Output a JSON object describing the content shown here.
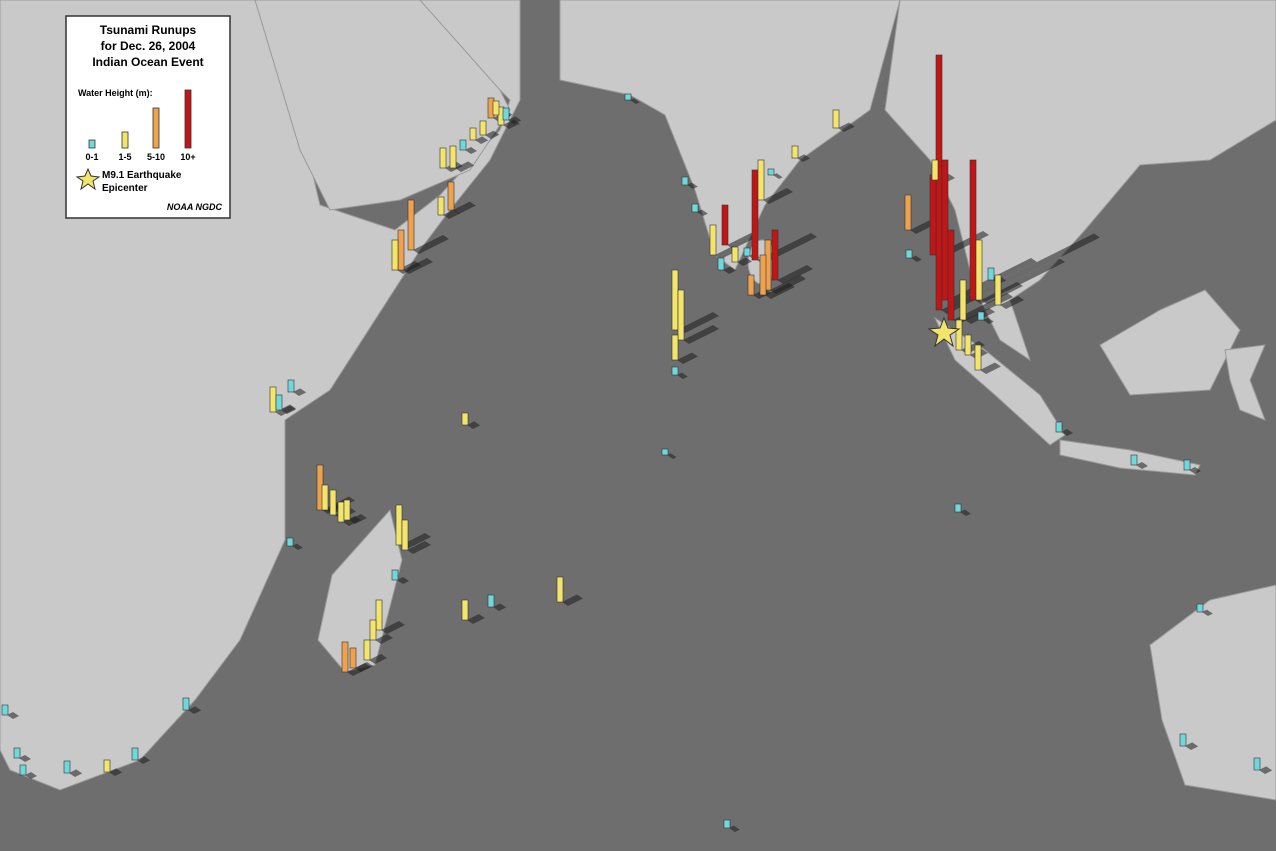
{
  "legend": {
    "title": [
      "Tsunami Runups",
      "for Dec. 26, 2004",
      "Indian Ocean Event"
    ],
    "subtitle": "Water Height (m):",
    "items": [
      {
        "label": "0-1",
        "color": "#6fd8dc"
      },
      {
        "label": "1-5",
        "color": "#f3e46c"
      },
      {
        "label": "5-10",
        "color": "#eea24e"
      },
      {
        "label": "10+",
        "color": "#c21616"
      }
    ],
    "epicenter": [
      "M9.1 Earthquake",
      "Epicenter"
    ],
    "source": "NOAA NGDC"
  }
}
